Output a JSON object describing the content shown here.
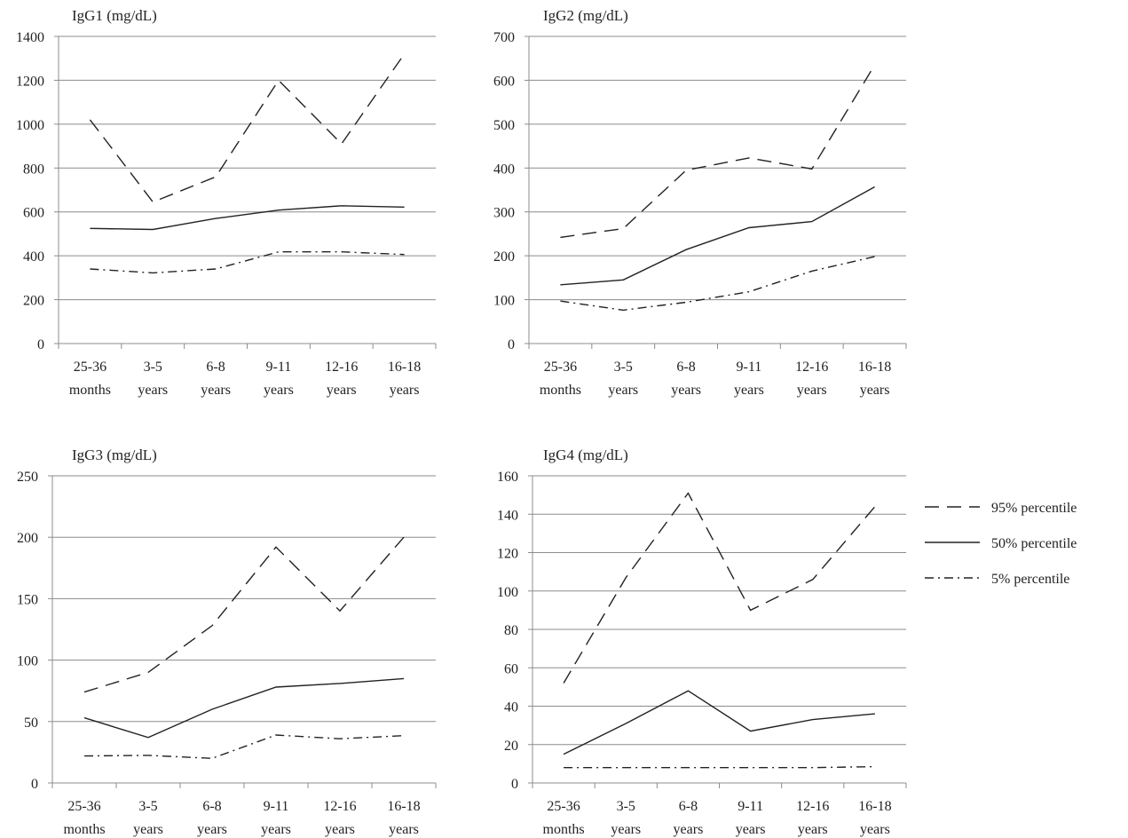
{
  "chart_data": [
    {
      "type": "line",
      "title": "IgG1 (mg/dL)",
      "categories": [
        [
          "25-36",
          "months"
        ],
        [
          "3-5",
          "years"
        ],
        [
          "6-8",
          "years"
        ],
        [
          "9-11",
          "years"
        ],
        [
          "12-16",
          "years"
        ],
        [
          "16-18",
          "years"
        ]
      ],
      "ylim": [
        0,
        1400
      ],
      "yticks": [
        0,
        200,
        400,
        600,
        800,
        1000,
        1200,
        1400
      ],
      "grid": true,
      "series": [
        {
          "name": "95% percentile",
          "style": "dashed",
          "values": [
            1020,
            645,
            760,
            1200,
            910,
            1320
          ]
        },
        {
          "name": "50% percentile",
          "style": "solid",
          "values": [
            525,
            520,
            570,
            608,
            628,
            622
          ]
        },
        {
          "name": "5% percentile",
          "style": "dashdot",
          "values": [
            340,
            322,
            340,
            418,
            418,
            406
          ]
        }
      ]
    },
    {
      "type": "line",
      "title": "IgG2 (mg/dL)",
      "categories": [
        [
          "25-36",
          "months"
        ],
        [
          "3-5",
          "years"
        ],
        [
          "6-8",
          "years"
        ],
        [
          "9-11",
          "years"
        ],
        [
          "12-16",
          "years"
        ],
        [
          "16-18",
          "years"
        ]
      ],
      "ylim": [
        0,
        700
      ],
      "yticks": [
        0,
        100,
        200,
        300,
        400,
        500,
        600,
        700
      ],
      "grid": true,
      "series": [
        {
          "name": "95% percentile",
          "style": "dashed",
          "values": [
            242,
            262,
            395,
            423,
            398,
            635
          ]
        },
        {
          "name": "50% percentile",
          "style": "solid",
          "values": [
            134,
            145,
            214,
            264,
            278,
            357
          ]
        },
        {
          "name": "5% percentile",
          "style": "dashdot",
          "values": [
            97,
            76,
            94,
            118,
            165,
            198
          ]
        }
      ]
    },
    {
      "type": "line",
      "title": "IgG3 (mg/dL)",
      "categories": [
        [
          "25-36",
          "months"
        ],
        [
          "3-5",
          "years"
        ],
        [
          "6-8",
          "years"
        ],
        [
          "9-11",
          "years"
        ],
        [
          "12-16",
          "years"
        ],
        [
          "16-18",
          "years"
        ]
      ],
      "ylim": [
        0,
        250
      ],
      "yticks": [
        0,
        50,
        100,
        150,
        200,
        250
      ],
      "grid": true,
      "series": [
        {
          "name": "95% percentile",
          "style": "dashed",
          "values": [
            74,
            90,
            128,
            192,
            140,
            200
          ]
        },
        {
          "name": "50% percentile",
          "style": "solid",
          "values": [
            53,
            37,
            60,
            78,
            81,
            85
          ]
        },
        {
          "name": "5% percentile",
          "style": "dashdot",
          "values": [
            22,
            22.5,
            20,
            39,
            36,
            38.5
          ]
        }
      ]
    },
    {
      "type": "line",
      "title": "IgG4 (mg/dL)",
      "categories": [
        [
          "25-36",
          "months"
        ],
        [
          "3-5",
          "years"
        ],
        [
          "6-8",
          "years"
        ],
        [
          "9-11",
          "years"
        ],
        [
          "12-16",
          "years"
        ],
        [
          "16-18",
          "years"
        ]
      ],
      "ylim": [
        0,
        160
      ],
      "yticks": [
        0,
        20,
        40,
        60,
        80,
        100,
        120,
        140,
        160
      ],
      "grid": true,
      "series": [
        {
          "name": "95% percentile",
          "style": "dashed",
          "values": [
            52,
            107,
            151,
            90,
            106,
            144
          ]
        },
        {
          "name": "50% percentile",
          "style": "solid",
          "values": [
            15,
            31,
            48,
            27,
            33,
            36
          ]
        },
        {
          "name": "5% percentile",
          "style": "dashdot",
          "values": [
            8,
            8,
            8,
            8,
            8,
            8.5
          ]
        }
      ]
    }
  ],
  "legend": {
    "placement": "right",
    "items": [
      {
        "label": "95% percentile",
        "style": "dashed"
      },
      {
        "label": "50% percentile",
        "style": "solid"
      },
      {
        "label": "5% percentile",
        "style": "dashdot"
      }
    ]
  },
  "colors": {
    "line": "#222222",
    "grid": "#8c8c8c",
    "background": "#ffffff"
  }
}
